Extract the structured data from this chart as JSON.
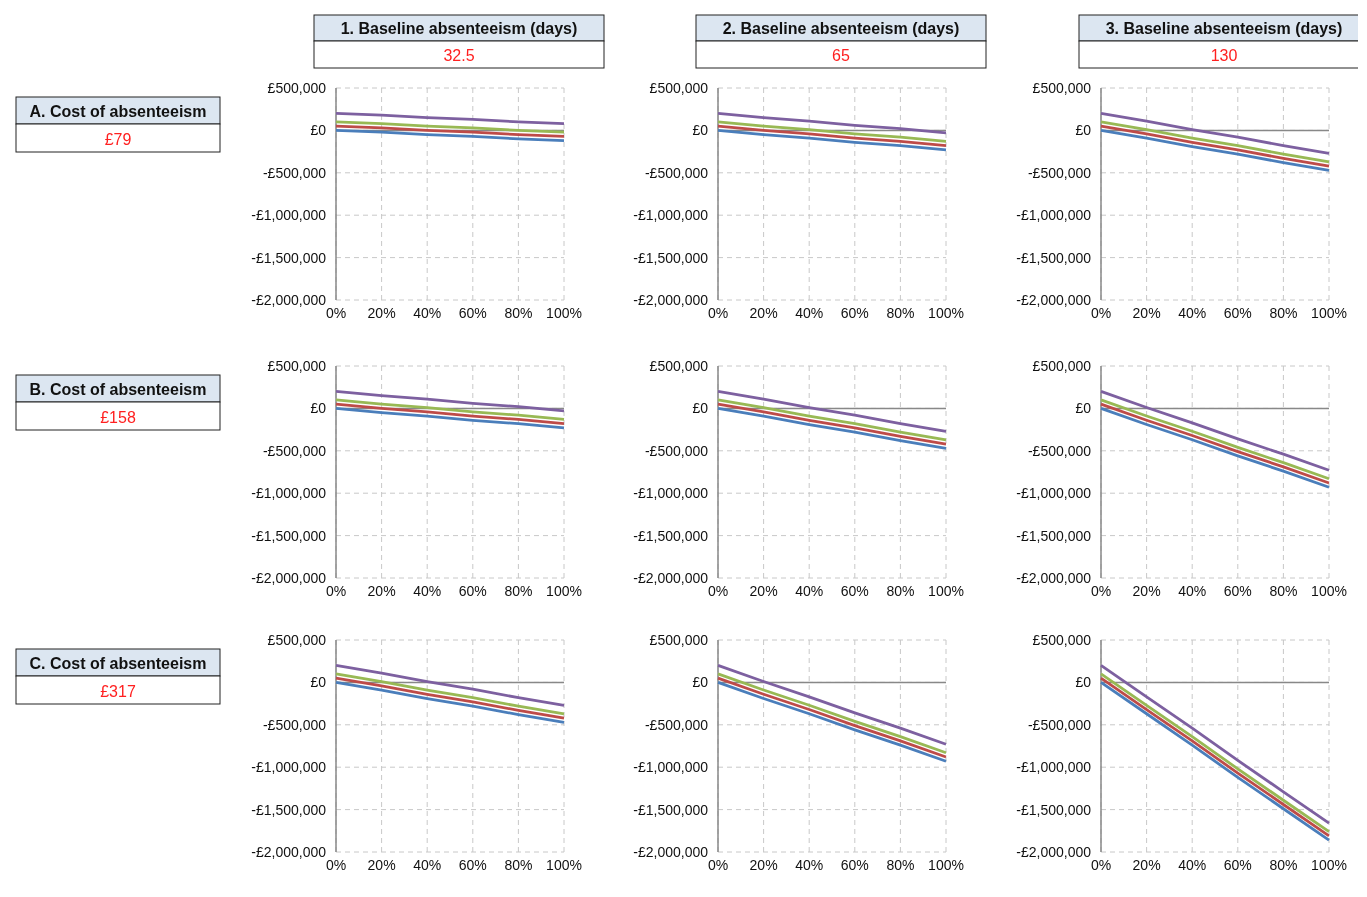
{
  "chart_data": [
    {
      "type": "line",
      "title": "1. Baseline absenteeism (days)",
      "subtitle": "32.5",
      "annotations": [
        "A. Cost of absenteeism",
        "£79"
      ],
      "categories": [
        "0%",
        "20%",
        "40%",
        "60%",
        "80%",
        "100%"
      ],
      "ylim": [
        -2000000,
        500000
      ],
      "yticks": [
        {
          "value": -2000000,
          "label": "-£2,000,000"
        },
        {
          "value": -1500000,
          "label": "-£1,500,000"
        },
        {
          "value": -1000000,
          "label": "-£1,000,000"
        },
        {
          "value": -500000,
          "label": "-£500,000"
        },
        {
          "value": 0,
          "label": "£0"
        },
        {
          "value": 500000,
          "label": "£500,000"
        }
      ],
      "grid": true,
      "series": [
        {
          "color": "#4a7ebb",
          "values": [
            0,
            -20000,
            -50000,
            -70000,
            -100000,
            -120000
          ]
        },
        {
          "color": "#be4b48",
          "values": [
            50000,
            30000,
            0,
            -20000,
            -50000,
            -70000
          ]
        },
        {
          "color": "#98b954",
          "values": [
            100000,
            80000,
            50000,
            30000,
            0,
            -20000
          ]
        },
        {
          "color": "#7d60a0",
          "values": [
            200000,
            180000,
            150000,
            130000,
            100000,
            80000
          ]
        }
      ]
    },
    {
      "type": "line",
      "title": "2. Baseline absenteeism (days)",
      "subtitle": "65",
      "categories": [
        "0%",
        "20%",
        "40%",
        "60%",
        "80%",
        "100%"
      ],
      "ylim": [
        -2000000,
        500000
      ],
      "yticks": [
        {
          "value": -2000000,
          "label": "-£2,000,000"
        },
        {
          "value": -1500000,
          "label": "-£1,500,000"
        },
        {
          "value": -1000000,
          "label": "-£1,000,000"
        },
        {
          "value": -500000,
          "label": "-£500,000"
        },
        {
          "value": 0,
          "label": "£0"
        },
        {
          "value": 500000,
          "label": "£500,000"
        }
      ],
      "grid": true,
      "series": [
        {
          "color": "#4a7ebb",
          "values": [
            0,
            -50000,
            -90000,
            -140000,
            -180000,
            -230000
          ]
        },
        {
          "color": "#be4b48",
          "values": [
            50000,
            0,
            -40000,
            -90000,
            -130000,
            -180000
          ]
        },
        {
          "color": "#98b954",
          "values": [
            100000,
            50000,
            10000,
            -40000,
            -80000,
            -130000
          ]
        },
        {
          "color": "#7d60a0",
          "values": [
            200000,
            150000,
            110000,
            60000,
            20000,
            -30000
          ]
        }
      ]
    },
    {
      "type": "line",
      "title": "3. Baseline absenteeism (days)",
      "subtitle": "130",
      "categories": [
        "0%",
        "20%",
        "40%",
        "60%",
        "80%",
        "100%"
      ],
      "ylim": [
        -2000000,
        500000
      ],
      "yticks": [
        {
          "value": -2000000,
          "label": "-£2,000,000"
        },
        {
          "value": -1500000,
          "label": "-£1,500,000"
        },
        {
          "value": -1000000,
          "label": "-£1,000,000"
        },
        {
          "value": -500000,
          "label": "-£500,000"
        },
        {
          "value": 0,
          "label": "£0"
        },
        {
          "value": 500000,
          "label": "£500,000"
        }
      ],
      "grid": true,
      "series": [
        {
          "color": "#4a7ebb",
          "values": [
            0,
            -90000,
            -190000,
            -280000,
            -380000,
            -470000
          ]
        },
        {
          "color": "#be4b48",
          "values": [
            50000,
            -40000,
            -140000,
            -230000,
            -330000,
            -420000
          ]
        },
        {
          "color": "#98b954",
          "values": [
            100000,
            10000,
            -90000,
            -180000,
            -280000,
            -370000
          ]
        },
        {
          "color": "#7d60a0",
          "values": [
            200000,
            110000,
            10000,
            -80000,
            -180000,
            -270000
          ]
        }
      ]
    },
    {
      "type": "line",
      "annotations": [
        "B. Cost of absenteeism",
        "£158"
      ],
      "categories": [
        "0%",
        "20%",
        "40%",
        "60%",
        "80%",
        "100%"
      ],
      "ylim": [
        -2000000,
        500000
      ],
      "yticks": [
        {
          "value": -2000000,
          "label": "-£2,000,000"
        },
        {
          "value": -1500000,
          "label": "-£1,500,000"
        },
        {
          "value": -1000000,
          "label": "-£1,000,000"
        },
        {
          "value": -500000,
          "label": "-£500,000"
        },
        {
          "value": 0,
          "label": "£0"
        },
        {
          "value": 500000,
          "label": "£500,000"
        }
      ],
      "grid": true,
      "series": [
        {
          "color": "#4a7ebb",
          "values": [
            0,
            -50000,
            -90000,
            -140000,
            -180000,
            -230000
          ]
        },
        {
          "color": "#be4b48",
          "values": [
            50000,
            0,
            -40000,
            -90000,
            -130000,
            -180000
          ]
        },
        {
          "color": "#98b954",
          "values": [
            100000,
            50000,
            10000,
            -40000,
            -80000,
            -130000
          ]
        },
        {
          "color": "#7d60a0",
          "values": [
            200000,
            150000,
            110000,
            60000,
            20000,
            -30000
          ]
        }
      ]
    },
    {
      "type": "line",
      "categories": [
        "0%",
        "20%",
        "40%",
        "60%",
        "80%",
        "100%"
      ],
      "ylim": [
        -2000000,
        500000
      ],
      "yticks": [
        {
          "value": -2000000,
          "label": "-£2,000,000"
        },
        {
          "value": -1500000,
          "label": "-£1,500,000"
        },
        {
          "value": -1000000,
          "label": "-£1,000,000"
        },
        {
          "value": -500000,
          "label": "-£500,000"
        },
        {
          "value": 0,
          "label": "£0"
        },
        {
          "value": 500000,
          "label": "£500,000"
        }
      ],
      "grid": true,
      "series": [
        {
          "color": "#4a7ebb",
          "values": [
            0,
            -90000,
            -190000,
            -280000,
            -380000,
            -470000
          ]
        },
        {
          "color": "#be4b48",
          "values": [
            50000,
            -40000,
            -140000,
            -230000,
            -330000,
            -420000
          ]
        },
        {
          "color": "#98b954",
          "values": [
            100000,
            10000,
            -90000,
            -180000,
            -280000,
            -370000
          ]
        },
        {
          "color": "#7d60a0",
          "values": [
            200000,
            110000,
            10000,
            -80000,
            -180000,
            -270000
          ]
        }
      ]
    },
    {
      "type": "line",
      "categories": [
        "0%",
        "20%",
        "40%",
        "60%",
        "80%",
        "100%"
      ],
      "ylim": [
        -2000000,
        500000
      ],
      "yticks": [
        {
          "value": -2000000,
          "label": "-£2,000,000"
        },
        {
          "value": -1500000,
          "label": "-£1,500,000"
        },
        {
          "value": -1000000,
          "label": "-£1,000,000"
        },
        {
          "value": -500000,
          "label": "-£500,000"
        },
        {
          "value": 0,
          "label": "£0"
        },
        {
          "value": 500000,
          "label": "£500,000"
        }
      ],
      "grid": true,
      "series": [
        {
          "color": "#4a7ebb",
          "values": [
            0,
            -190000,
            -370000,
            -560000,
            -740000,
            -930000
          ]
        },
        {
          "color": "#be4b48",
          "values": [
            50000,
            -140000,
            -320000,
            -510000,
            -690000,
            -880000
          ]
        },
        {
          "color": "#98b954",
          "values": [
            100000,
            -90000,
            -270000,
            -460000,
            -640000,
            -830000
          ]
        },
        {
          "color": "#7d60a0",
          "values": [
            200000,
            10000,
            -170000,
            -360000,
            -540000,
            -730000
          ]
        }
      ]
    },
    {
      "type": "line",
      "annotations": [
        "C. Cost of absenteeism",
        "£317"
      ],
      "categories": [
        "0%",
        "20%",
        "40%",
        "60%",
        "80%",
        "100%"
      ],
      "ylim": [
        -2000000,
        500000
      ],
      "yticks": [
        {
          "value": -2000000,
          "label": "-£2,000,000"
        },
        {
          "value": -1500000,
          "label": "-£1,500,000"
        },
        {
          "value": -1000000,
          "label": "-£1,000,000"
        },
        {
          "value": -500000,
          "label": "-£500,000"
        },
        {
          "value": 0,
          "label": "£0"
        },
        {
          "value": 500000,
          "label": "£500,000"
        }
      ],
      "grid": true,
      "series": [
        {
          "color": "#4a7ebb",
          "values": [
            0,
            -90000,
            -190000,
            -280000,
            -380000,
            -470000
          ]
        },
        {
          "color": "#be4b48",
          "values": [
            50000,
            -40000,
            -140000,
            -230000,
            -330000,
            -420000
          ]
        },
        {
          "color": "#98b954",
          "values": [
            100000,
            10000,
            -90000,
            -180000,
            -280000,
            -370000
          ]
        },
        {
          "color": "#7d60a0",
          "values": [
            200000,
            110000,
            10000,
            -80000,
            -180000,
            -270000
          ]
        }
      ]
    },
    {
      "type": "line",
      "categories": [
        "0%",
        "20%",
        "40%",
        "60%",
        "80%",
        "100%"
      ],
      "ylim": [
        -2000000,
        500000
      ],
      "yticks": [
        {
          "value": -2000000,
          "label": "-£2,000,000"
        },
        {
          "value": -1500000,
          "label": "-£1,500,000"
        },
        {
          "value": -1000000,
          "label": "-£1,000,000"
        },
        {
          "value": -500000,
          "label": "-£500,000"
        },
        {
          "value": 0,
          "label": "£0"
        },
        {
          "value": 500000,
          "label": "£500,000"
        }
      ],
      "grid": true,
      "series": [
        {
          "color": "#4a7ebb",
          "values": [
            0,
            -190000,
            -370000,
            -560000,
            -740000,
            -930000
          ]
        },
        {
          "color": "#be4b48",
          "values": [
            50000,
            -140000,
            -320000,
            -510000,
            -690000,
            -880000
          ]
        },
        {
          "color": "#98b954",
          "values": [
            100000,
            -90000,
            -270000,
            -460000,
            -640000,
            -830000
          ]
        },
        {
          "color": "#7d60a0",
          "values": [
            200000,
            10000,
            -170000,
            -360000,
            -540000,
            -730000
          ]
        }
      ]
    },
    {
      "type": "line",
      "categories": [
        "0%",
        "20%",
        "40%",
        "60%",
        "80%",
        "100%"
      ],
      "ylim": [
        -2000000,
        500000
      ],
      "yticks": [
        {
          "value": -2000000,
          "label": "-£2,000,000"
        },
        {
          "value": -1500000,
          "label": "-£1,500,000"
        },
        {
          "value": -1000000,
          "label": "-£1,000,000"
        },
        {
          "value": -500000,
          "label": "-£500,000"
        },
        {
          "value": 0,
          "label": "£0"
        },
        {
          "value": 500000,
          "label": "£500,000"
        }
      ],
      "grid": true,
      "series": [
        {
          "color": "#4a7ebb",
          "values": [
            0,
            -370000,
            -740000,
            -1120000,
            -1490000,
            -1860000
          ]
        },
        {
          "color": "#be4b48",
          "values": [
            50000,
            -320000,
            -690000,
            -1070000,
            -1440000,
            -1810000
          ]
        },
        {
          "color": "#98b954",
          "values": [
            100000,
            -270000,
            -640000,
            -1020000,
            -1390000,
            -1760000
          ]
        },
        {
          "color": "#7d60a0",
          "values": [
            200000,
            -170000,
            -540000,
            -920000,
            -1290000,
            -1660000
          ]
        }
      ]
    }
  ]
}
